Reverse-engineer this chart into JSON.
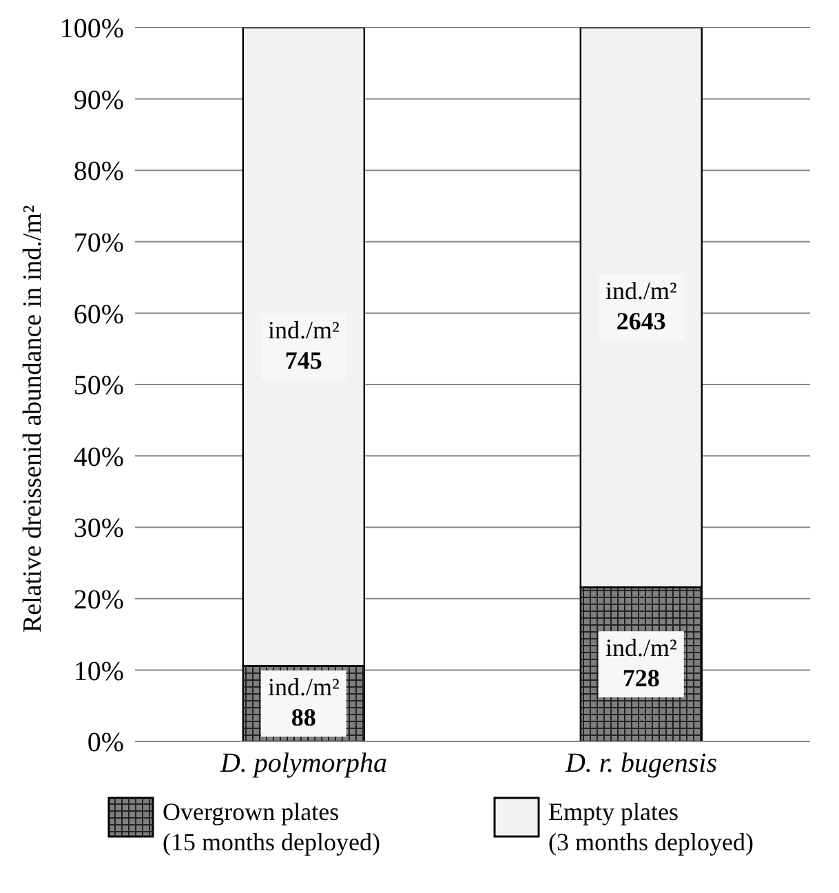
{
  "chart_data": {
    "type": "bar",
    "stacked": true,
    "ylabel": "Relative dreissenid abundance in ind./m²",
    "categories": [
      "D. polymorpha",
      "D. r. bugensis"
    ],
    "series": [
      {
        "name": "Overgrown plates (15 months deployed)",
        "color": "#7f7f7f",
        "values": [
          10.6,
          21.6
        ],
        "value_labels": [
          "ind./m²\n88",
          "ind./m²\n728"
        ]
      },
      {
        "name": "Empty plates (3 months deployed)",
        "color": "#f2f2f2",
        "values": [
          89.4,
          78.4
        ],
        "value_labels": [
          "ind./m²\n745",
          "ind./m²\n2643"
        ]
      }
    ],
    "ylim": [
      0,
      100
    ],
    "yticks": [
      {
        "value": 0,
        "label": "0%"
      },
      {
        "value": 10,
        "label": "10%"
      },
      {
        "value": 20,
        "label": "20%"
      },
      {
        "value": 30,
        "label": "30%"
      },
      {
        "value": 40,
        "label": "40%"
      },
      {
        "value": 50,
        "label": "50%"
      },
      {
        "value": 60,
        "label": "60%"
      },
      {
        "value": 70,
        "label": "70%"
      },
      {
        "value": 80,
        "label": "80%"
      },
      {
        "value": 90,
        "label": "90%"
      },
      {
        "value": 100,
        "label": "100%"
      }
    ],
    "grid": "y",
    "legend": "bottom"
  }
}
